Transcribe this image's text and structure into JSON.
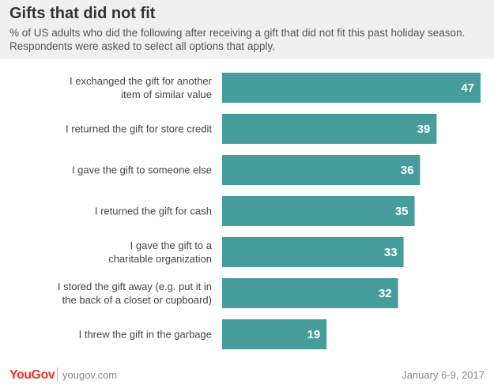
{
  "header": {
    "title": "Gifts that did not fit",
    "subtitle": "% of US adults who did the following after receiving a gift that did not fit this past holiday season. Respondents were asked to select all options that apply."
  },
  "chart_data": {
    "type": "bar",
    "orientation": "horizontal",
    "categories": [
      [
        "I exchanged the gift for another",
        "item of similar value"
      ],
      [
        "I returned the gift for store credit"
      ],
      [
        "I gave the gift to someone else"
      ],
      [
        "I returned the gift for cash"
      ],
      [
        "I gave the gift to a",
        "charitable organization"
      ],
      [
        "I stored the gift away (e.g. put it in",
        "the back of a closet or cupboard)"
      ],
      [
        "I threw the gift in the garbage"
      ]
    ],
    "values": [
      47,
      39,
      36,
      35,
      33,
      32,
      19
    ],
    "xlim": [
      0,
      47
    ],
    "bar_color": "#479c9c",
    "grid": false,
    "legend": "none"
  },
  "footer": {
    "logo": "YouGov",
    "site": "yougov.com",
    "date": "January 6-9, 2017"
  }
}
